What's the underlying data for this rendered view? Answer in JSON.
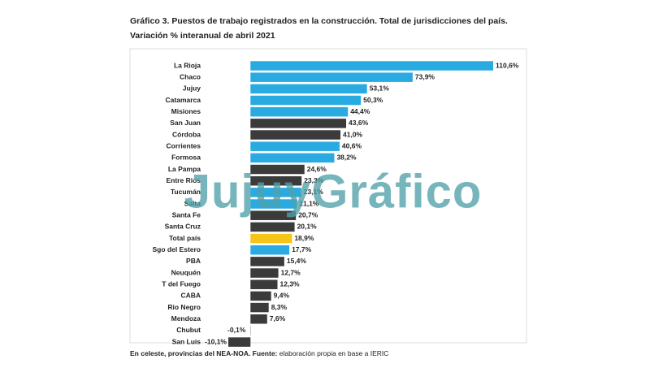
{
  "chart_data": {
    "type": "barh",
    "title": "Gráfico 3. Puestos de trabajo registrados en la construcción. Total de jurisdicciones del país.",
    "subtitle": "Variación % interanual de abril 2021",
    "categories": [
      "La Rioja",
      "Chaco",
      "Jujuy",
      "Catamarca",
      "Misiones",
      "San Juan",
      "Córdoba",
      "Corrientes",
      "Formosa",
      "La Pampa",
      "Entre Rios",
      "Tucumán",
      "Salta",
      "Santa Fe",
      "Santa Cruz",
      "Total país",
      "Sgo del Estero",
      "PBA",
      "Neuquén",
      "T del Fuego",
      "CABA",
      "Rio Negro",
      "Mendoza",
      "Chubut",
      "San Luis"
    ],
    "values": [
      110.6,
      73.9,
      53.1,
      50.3,
      44.4,
      43.6,
      41.0,
      40.6,
      38.2,
      24.6,
      23.3,
      23.1,
      21.1,
      20.7,
      20.1,
      18.9,
      17.7,
      15.4,
      12.7,
      12.3,
      9.4,
      8.3,
      7.6,
      -0.1,
      -10.1
    ],
    "value_labels": [
      "110,6%",
      "73,9%",
      "53,1%",
      "50,3%",
      "44,4%",
      "43,6%",
      "41,0%",
      "40,6%",
      "38,2%",
      "24,6%",
      "23,3%",
      "23,1%",
      "21,1%",
      "20,7%",
      "20,1%",
      "18,9%",
      "17,7%",
      "15,4%",
      "12,7%",
      "12,3%",
      "9,4%",
      "8,3%",
      "7,6%",
      "-0,1%",
      "-10,1%"
    ],
    "colors": [
      "#29abe2",
      "#29abe2",
      "#29abe2",
      "#29abe2",
      "#29abe2",
      "#3b3b3b",
      "#3b3b3b",
      "#29abe2",
      "#29abe2",
      "#3b3b3b",
      "#3b3b3b",
      "#29abe2",
      "#29abe2",
      "#3b3b3b",
      "#3b3b3b",
      "#f5c518",
      "#29abe2",
      "#3b3b3b",
      "#3b3b3b",
      "#3b3b3b",
      "#3b3b3b",
      "#3b3b3b",
      "#3b3b3b",
      "#3b3b3b",
      "#3b3b3b"
    ]
  },
  "watermark": "JujuyGráfico",
  "note": {
    "bold": "En celeste, provincias del NEA-NOA. Fuente:",
    "text": "elaboración propia en base a IERIC"
  }
}
